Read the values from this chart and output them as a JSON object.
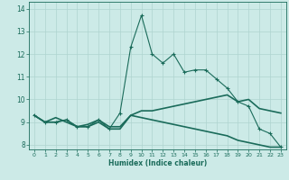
{
  "xlabel": "Humidex (Indice chaleur)",
  "background_color": "#cceae7",
  "grid_color": "#aed4d0",
  "line_color": "#1a6b5a",
  "xlim": [
    -0.5,
    23.5
  ],
  "ylim": [
    7.8,
    14.3
  ],
  "xticks": [
    0,
    1,
    2,
    3,
    4,
    5,
    6,
    7,
    8,
    9,
    10,
    11,
    12,
    13,
    14,
    15,
    16,
    17,
    18,
    19,
    20,
    21,
    22,
    23
  ],
  "yticks": [
    8,
    9,
    10,
    11,
    12,
    13,
    14
  ],
  "series1_x": [
    0,
    1,
    2,
    3,
    4,
    5,
    6,
    7,
    8,
    9,
    10,
    11,
    12,
    13,
    14,
    15,
    16,
    17,
    18,
    19,
    20,
    21,
    22,
    23
  ],
  "series1_y": [
    9.3,
    9.0,
    9.0,
    9.1,
    8.8,
    8.8,
    9.1,
    8.7,
    9.4,
    12.3,
    13.7,
    12.0,
    11.6,
    12.0,
    11.2,
    11.3,
    11.3,
    10.9,
    10.5,
    9.9,
    9.7,
    8.7,
    8.5,
    7.9
  ],
  "series2_x": [
    0,
    1,
    2,
    3,
    4,
    5,
    6,
    7,
    8,
    9,
    10,
    11,
    12,
    13,
    14,
    15,
    16,
    17,
    18,
    19,
    20,
    21,
    22,
    23
  ],
  "series2_y": [
    9.3,
    9.0,
    9.2,
    9.0,
    8.8,
    8.9,
    9.1,
    8.8,
    8.8,
    9.3,
    9.5,
    9.5,
    9.6,
    9.7,
    9.8,
    9.9,
    10.0,
    10.1,
    10.2,
    9.9,
    10.0,
    9.6,
    9.5,
    9.4
  ],
  "series3_x": [
    0,
    1,
    2,
    3,
    4,
    5,
    6,
    7,
    8,
    9,
    10,
    11,
    12,
    13,
    14,
    15,
    16,
    17,
    18,
    19,
    20,
    21,
    22,
    23
  ],
  "series3_y": [
    9.3,
    9.0,
    9.0,
    9.1,
    8.8,
    8.8,
    9.0,
    8.7,
    8.7,
    9.3,
    9.2,
    9.1,
    9.0,
    8.9,
    8.8,
    8.7,
    8.6,
    8.5,
    8.4,
    8.2,
    8.1,
    8.0,
    7.9,
    7.9
  ]
}
